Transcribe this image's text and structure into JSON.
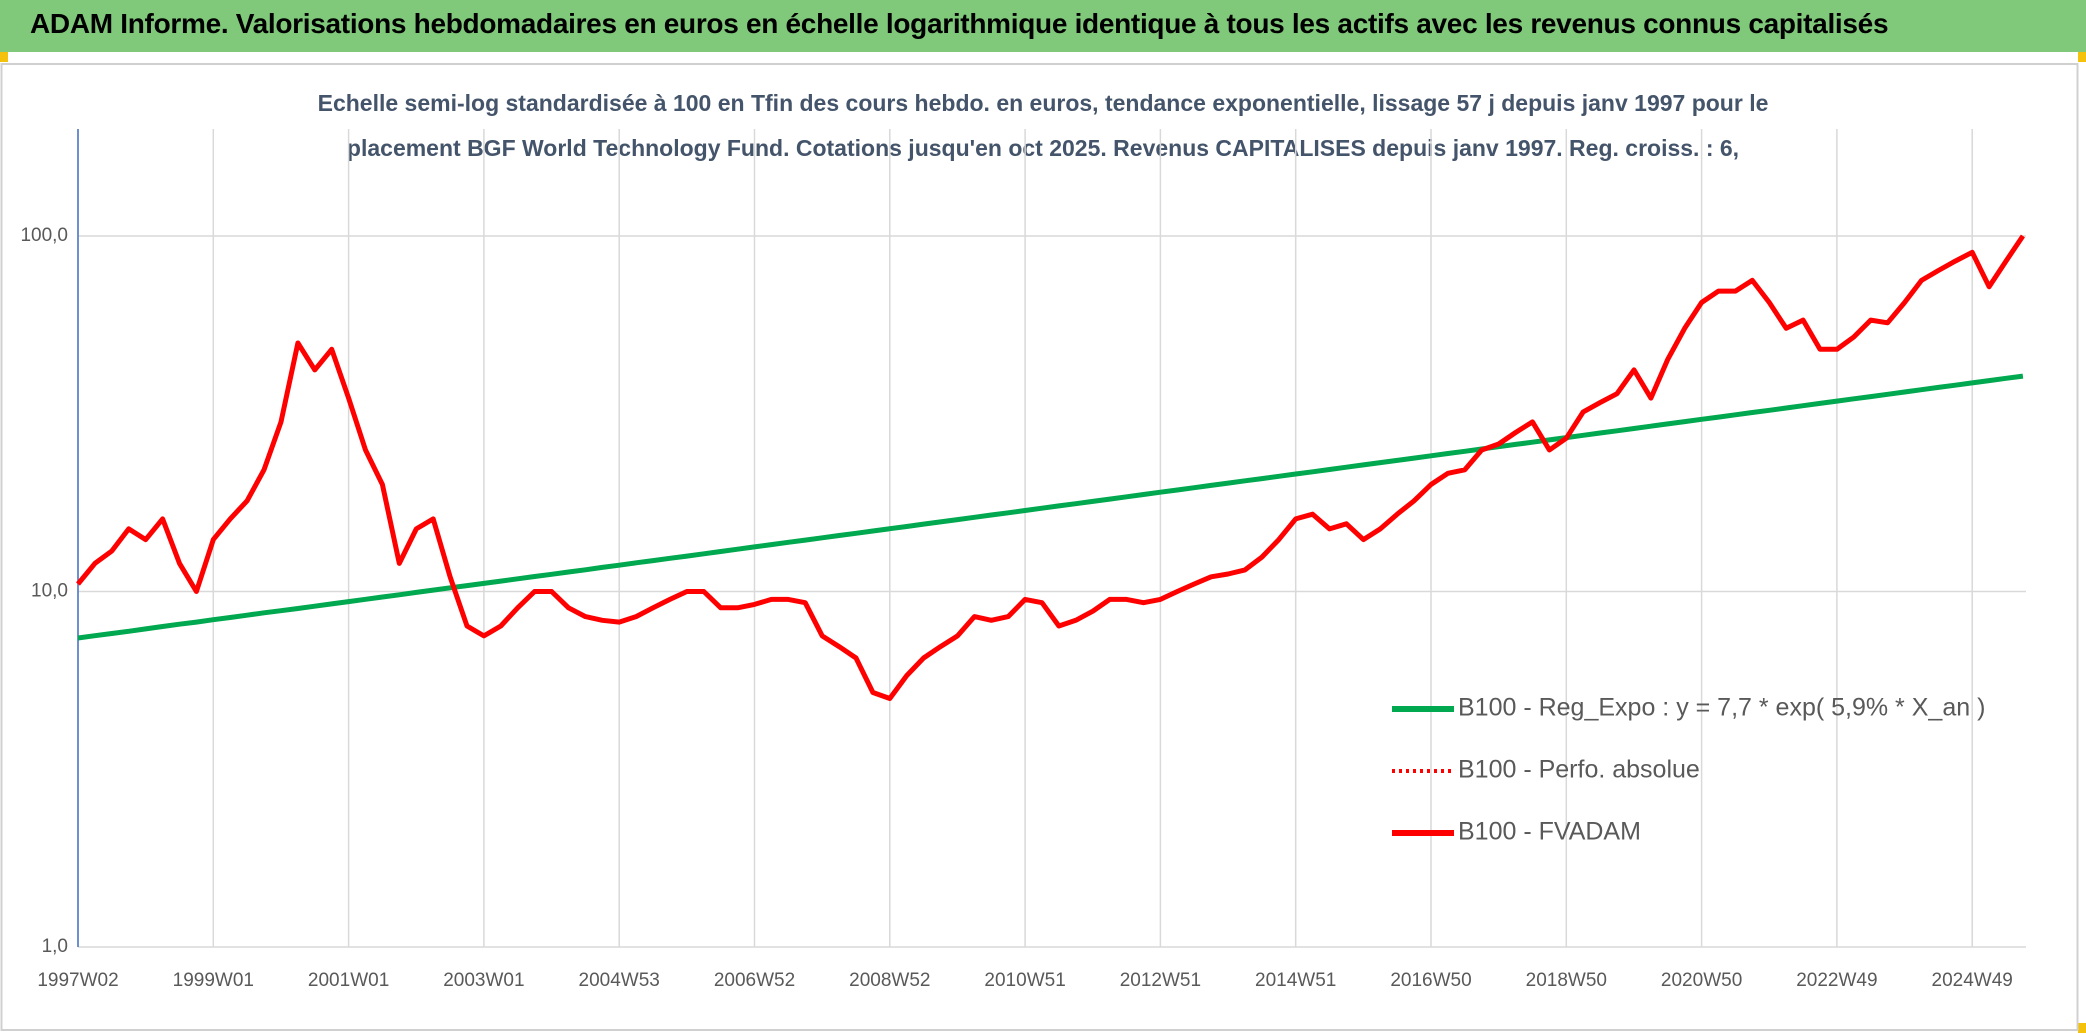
{
  "header": {
    "title": "ADAM Informe. Valorisations hebdomadaires en euros en échelle logarithmique identique à tous les actifs avec les revenus connus capitalisés"
  },
  "chart_data": {
    "type": "line",
    "subtitle": [
      "Echelle semi-log standardisée à 100 en Tfin des cours hebdo. en euros, tendance exponentielle, lissage 57 j depuis janv 1997 pour le",
      "placement BGF World Technology Fund. Cotations jusqu'en oct 2025. Revenus CAPITALISES depuis janv 1997. Reg. croiss. : 6,"
    ],
    "categories": [
      "1997W02",
      null,
      null,
      null,
      null,
      null,
      null,
      null,
      "1999W01",
      null,
      null,
      null,
      null,
      null,
      null,
      null,
      "2001W01",
      null,
      null,
      null,
      null,
      null,
      null,
      null,
      "2003W01",
      null,
      null,
      null,
      null,
      null,
      null,
      null,
      "2004W53",
      null,
      null,
      null,
      null,
      null,
      null,
      null,
      "2006W52",
      null,
      null,
      null,
      null,
      null,
      null,
      null,
      "2008W52",
      null,
      null,
      null,
      null,
      null,
      null,
      null,
      "2010W51",
      null,
      null,
      null,
      null,
      null,
      null,
      null,
      "2012W51",
      null,
      null,
      null,
      null,
      null,
      null,
      null,
      "2014W51",
      null,
      null,
      null,
      null,
      null,
      null,
      null,
      "2016W50",
      null,
      null,
      null,
      null,
      null,
      null,
      null,
      "2018W50",
      null,
      null,
      null,
      null,
      null,
      null,
      null,
      "2020W50",
      null,
      null,
      null,
      null,
      null,
      null,
      null,
      "2022W49",
      null,
      null,
      null,
      null,
      null,
      null,
      null,
      "2024W49",
      null,
      null,
      null
    ],
    "log_scale": true,
    "grid": true,
    "legend": "lower-right",
    "ylim": [
      1,
      200
    ],
    "yticks": [
      {
        "value": 1,
        "label": "1,0"
      },
      {
        "value": 10,
        "label": "10,0"
      },
      {
        "value": 100,
        "label": "100,0"
      }
    ],
    "series": [
      {
        "name": "B100 - Reg_Expo : y = 7,7 * exp( 5,9% *  X_an )",
        "color": "#00a84f",
        "style": "solid",
        "values": [
          7.4,
          7.51,
          7.62,
          7.73,
          7.85,
          7.97,
          8.09,
          8.2,
          8.33,
          8.45,
          8.58,
          8.71,
          8.83,
          8.96,
          9.09,
          9.23,
          9.37,
          9.51,
          9.65,
          9.79,
          9.94,
          10.09,
          10.24,
          10.39,
          10.54,
          10.7,
          10.86,
          11.02,
          11.18,
          11.35,
          11.51,
          11.69,
          11.86,
          12.04,
          12.22,
          12.4,
          12.58,
          12.77,
          12.96,
          13.15,
          13.35,
          13.55,
          13.75,
          13.95,
          14.16,
          14.37,
          14.58,
          14.8,
          15.02,
          15.24,
          15.47,
          15.7,
          15.93,
          16.17,
          16.41,
          16.65,
          16.9,
          17.15,
          17.41,
          17.66,
          17.93,
          18.2,
          18.47,
          18.74,
          19.02,
          19.3,
          19.59,
          19.88,
          20.18,
          20.48,
          20.78,
          21.09,
          21.4,
          21.72,
          22.04,
          22.37,
          22.7,
          23.04,
          23.38,
          23.73,
          24.08,
          24.44,
          24.8,
          25.17,
          25.55,
          25.93,
          26.31,
          26.7,
          27.1,
          27.5,
          27.91,
          28.32,
          28.75,
          29.18,
          29.61,
          30.05,
          30.5,
          30.95,
          31.41,
          31.88,
          32.35,
          32.83,
          33.32,
          33.81,
          34.32,
          34.83,
          35.35,
          35.87,
          36.41,
          36.95,
          37.5,
          38.06,
          38.62,
          39.19,
          39.78,
          40.37
        ]
      },
      {
        "name": "B100 - Perfo. absolue",
        "color": "#ff0000",
        "style": "dotted",
        "values": [
          10.5,
          12,
          13,
          15,
          14,
          16,
          12,
          10,
          14,
          16,
          18,
          22,
          30,
          50,
          42,
          48,
          35,
          25,
          20,
          12,
          15,
          16,
          11,
          8,
          7.5,
          8,
          9,
          10,
          10,
          9,
          8.5,
          8.3,
          8.2,
          8.5,
          9,
          9.5,
          10,
          10,
          9,
          9,
          9.2,
          9.5,
          9.5,
          9.3,
          7.5,
          7,
          6.5,
          5.2,
          5,
          5.8,
          6.5,
          7,
          7.5,
          8.5,
          8.3,
          8.5,
          9.5,
          9.3,
          8,
          8.3,
          8.8,
          9.5,
          9.5,
          9.3,
          9.5,
          10,
          10.5,
          11,
          11.2,
          11.5,
          12.5,
          14,
          16,
          16.5,
          15,
          15.5,
          14,
          15,
          16.5,
          18,
          20,
          21.5,
          22,
          25,
          26,
          28,
          30,
          25,
          27,
          32,
          34,
          36,
          42,
          35,
          45,
          55,
          65,
          70,
          70,
          75,
          65,
          55,
          58,
          48,
          48,
          52,
          58,
          57,
          65,
          75,
          80,
          85,
          90,
          72,
          85,
          100
        ]
      },
      {
        "name": "B100 - FVADAM",
        "color": "#ff0000",
        "style": "solid",
        "values": [
          10.5,
          12,
          13,
          15,
          14,
          16,
          12,
          10,
          14,
          16,
          18,
          22,
          30,
          50,
          42,
          48,
          35,
          25,
          20,
          12,
          15,
          16,
          11,
          8,
          7.5,
          8,
          9,
          10,
          10,
          9,
          8.5,
          8.3,
          8.2,
          8.5,
          9,
          9.5,
          10,
          10,
          9,
          9,
          9.2,
          9.5,
          9.5,
          9.3,
          7.5,
          7,
          6.5,
          5.2,
          5,
          5.8,
          6.5,
          7,
          7.5,
          8.5,
          8.3,
          8.5,
          9.5,
          9.3,
          8,
          8.3,
          8.8,
          9.5,
          9.5,
          9.3,
          9.5,
          10,
          10.5,
          11,
          11.2,
          11.5,
          12.5,
          14,
          16,
          16.5,
          15,
          15.5,
          14,
          15,
          16.5,
          18,
          20,
          21.5,
          22,
          25,
          26,
          28,
          30,
          25,
          27,
          32,
          34,
          36,
          42,
          35,
          45,
          55,
          65,
          70,
          70,
          75,
          65,
          55,
          58,
          48,
          48,
          52,
          58,
          57,
          65,
          75,
          80,
          85,
          90,
          72,
          85,
          100
        ]
      }
    ]
  }
}
